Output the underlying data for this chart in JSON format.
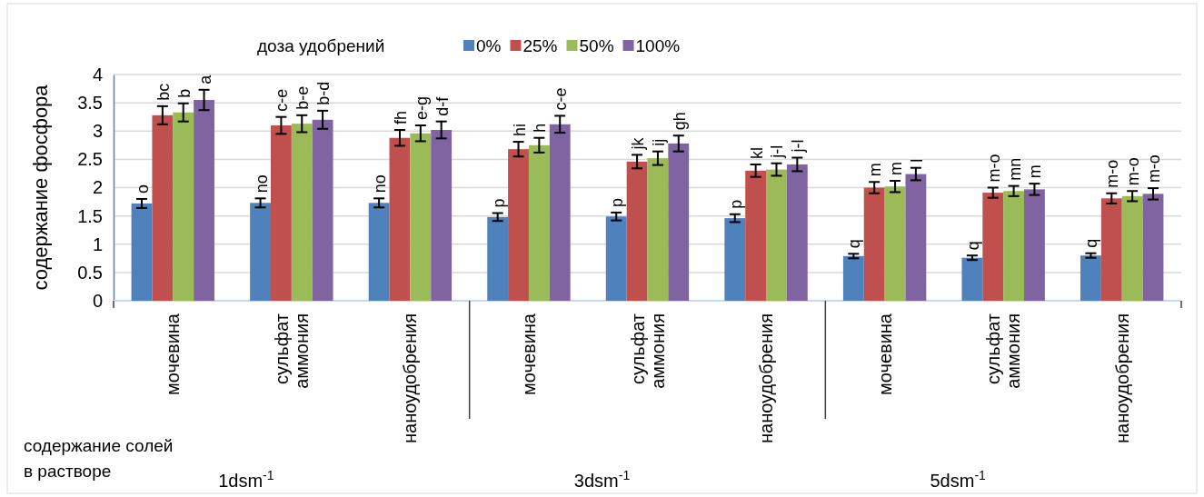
{
  "chart_data": {
    "type": "bar",
    "ylabel": "содержание фосфора",
    "legend_title": "доза удобрений",
    "legend": "top",
    "grid": "y",
    "categories": [
      "мочевина",
      "сульфат аммония",
      "наноудобрения",
      "мочевина",
      "сульфат аммония",
      "наноудобрения",
      "мочевина",
      "сульфат аммония",
      "наноудобрения"
    ],
    "ylim": [
      0,
      4
    ],
    "yticks": [
      0,
      0.5,
      1,
      1.5,
      2,
      2.5,
      3,
      3.5,
      4
    ],
    "annotations": [
      "содержание солей в растворе",
      "1dsm$^{-1}$",
      "3dsm$^{-1}$",
      "5dsm$^{-1}$"
    ],
    "series": [
      {
        "name": "0%",
        "color": "#4f81bd",
        "values": [
          1.72,
          1.73,
          1.73,
          1.48,
          1.49,
          1.46,
          0.79,
          0.76,
          0.8
        ],
        "errors": [
          0.08,
          0.08,
          0.08,
          0.07,
          0.07,
          0.07,
          0.04,
          0.04,
          0.04
        ],
        "value_labels": [
          "o",
          "no",
          "no",
          "p",
          "p",
          "p",
          "q",
          "q",
          "q"
        ]
      },
      {
        "name": "25%",
        "color": "#c0504d",
        "values": [
          3.28,
          3.1,
          2.88,
          2.68,
          2.46,
          2.3,
          2.0,
          1.91,
          1.81
        ],
        "errors": [
          0.16,
          0.15,
          0.14,
          0.13,
          0.12,
          0.11,
          0.1,
          0.09,
          0.09
        ],
        "value_labels": [
          "bc",
          "c-e",
          "fh",
          "hi",
          "jk",
          "kl",
          "m",
          "m-o",
          "m-o"
        ]
      },
      {
        "name": "50%",
        "color": "#9bbb59",
        "values": [
          3.33,
          3.13,
          2.96,
          2.75,
          2.52,
          2.32,
          2.02,
          1.94,
          1.85
        ],
        "errors": [
          0.16,
          0.15,
          0.14,
          0.13,
          0.12,
          0.11,
          0.1,
          0.09,
          0.09
        ],
        "value_labels": [
          "b",
          "b-e",
          "e-g",
          "h",
          "ij",
          "j-l",
          "m",
          "mn",
          "m-o"
        ]
      },
      {
        "name": "100%",
        "color": "#8064a2",
        "values": [
          3.55,
          3.2,
          3.02,
          3.12,
          2.78,
          2.41,
          2.24,
          1.97,
          1.89
        ],
        "errors": [
          0.18,
          0.16,
          0.15,
          0.15,
          0.14,
          0.12,
          0.11,
          0.1,
          0.1
        ],
        "value_labels": [
          "a",
          "b-d",
          "d-f",
          "c-e",
          "gh",
          "j-l",
          "l",
          "m",
          "m-o"
        ]
      }
    ]
  }
}
